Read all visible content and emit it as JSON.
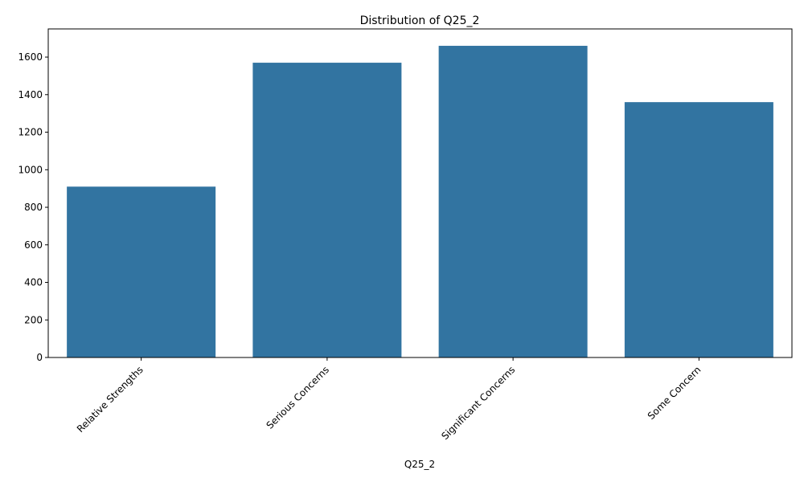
{
  "chart_data": {
    "type": "bar",
    "title": "Distribution of Q25_2",
    "xlabel": "Q25_2",
    "ylabel": "",
    "categories": [
      "Relative Strengths",
      "Serious Concerns",
      "Significant Concerns",
      "Some Concern"
    ],
    "values": [
      910,
      1570,
      1660,
      1360
    ],
    "ylim": [
      0,
      1750
    ],
    "yticks": [
      0,
      200,
      400,
      600,
      800,
      1000,
      1200,
      1400,
      1600
    ],
    "grid": false,
    "bar_color": "#3274a1"
  }
}
